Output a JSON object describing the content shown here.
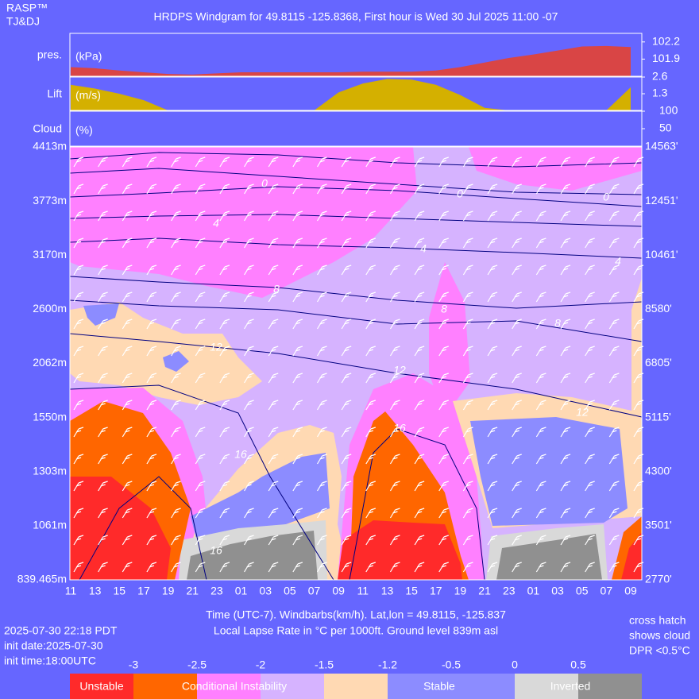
{
  "header": {
    "brand": "RASP™",
    "authors": "TJ&DJ",
    "title": "HRDPS Windgram for 49.8115 -125.8368, First hour is Wed 30 Jul 2025 11:00 -07"
  },
  "chart_data": [
    {
      "type": "area",
      "label": "pres.",
      "unit": "(kPa)",
      "color": "#d94545",
      "label_color": "#ff6a6a",
      "values": [
        101.76,
        101.74,
        101.7,
        101.67,
        101.64,
        101.63,
        101.65,
        101.67,
        101.67,
        101.67,
        101.67,
        101.67,
        101.68,
        101.68,
        101.68,
        101.7,
        101.76,
        101.84,
        101.92,
        101.98,
        102.05,
        102.12,
        102.13,
        102.11
      ],
      "ylim": [
        101.6,
        102.35
      ],
      "yticks": [
        101.9,
        102.2
      ]
    },
    {
      "type": "area",
      "label": "Lift",
      "unit": "(m/s)",
      "color": "#d4b000",
      "label_color": "#ffd400",
      "values": [
        2.0,
        1.7,
        1.3,
        0.8,
        0,
        0,
        0,
        0,
        0,
        0,
        0,
        1.4,
        2.1,
        2.45,
        2.4,
        2.0,
        1.2,
        0.2,
        0,
        0,
        0,
        0,
        0,
        1.8
      ],
      "ylim": [
        0,
        2.6
      ],
      "yticks": [
        1.3,
        2.6
      ]
    },
    {
      "type": "cloud",
      "label": "Cloud",
      "unit": "(%)",
      "label_color": "#d8d8d8",
      "ylim": [
        0,
        100
      ],
      "yticks": [
        50,
        100
      ]
    },
    {
      "type": "contour",
      "categories": [
        "11",
        "13",
        "15",
        "17",
        "19",
        "21",
        "23",
        "01",
        "03",
        "05",
        "07",
        "09",
        "11",
        "13",
        "15",
        "17",
        "19",
        "21",
        "23",
        "01",
        "03",
        "05",
        "07",
        "09"
      ],
      "category_colors": [
        "#ffb000",
        "#ffb000",
        "#ffb000",
        "#ffb000",
        "#ffb000",
        "#ffffff",
        "#ffffff",
        "#ffffff",
        "#ffffff",
        "#ffffff",
        "#ffffff",
        "#ffb000",
        "#ffb000",
        "#ffb000",
        "#ffb000",
        "#ffb000",
        "#ffb000",
        "#ffffff",
        "#ffffff",
        "#ffffff",
        "#ffffff",
        "#ffffff",
        "#ffffff",
        "#ffb000"
      ],
      "y_labels": [
        "4413m",
        "3773m",
        "3170m",
        "2600m",
        "2062m",
        "1550m",
        "1303m",
        "1061m",
        "839.465m"
      ],
      "y2_labels": [
        "14563'",
        "12451'",
        "10461'",
        "8580'",
        "6805'",
        "5115'",
        "4300'",
        "3501'",
        "2770'"
      ],
      "contour_labels": [
        "0",
        "0",
        "0",
        "4",
        "4",
        "4",
        "8",
        "8",
        "8",
        "12",
        "12",
        "12",
        "16",
        "16",
        "16"
      ],
      "x_label": "Time (UTC-7). Windbarbs(km/h). Lat,lon = 49.8115, -125.837",
      "subtitle": "Local Lapse Rate in °C per 1000ft.   Ground level 839m asl"
    }
  ],
  "legend": {
    "ticks": [
      -3,
      -2.5,
      -2,
      -1.5,
      -1.2,
      -0.5,
      0,
      0.5
    ],
    "labels": [
      "Unstable",
      "Conditional Instability",
      "Stable",
      "Inverted"
    ]
  },
  "footer": {
    "left": [
      "2025-07-30 22:18 PDT",
      "init date:2025-07-30",
      "init time:18:00UTC"
    ],
    "right": [
      "cross hatch",
      "shows cloud",
      "DPR <0.5°C"
    ]
  }
}
